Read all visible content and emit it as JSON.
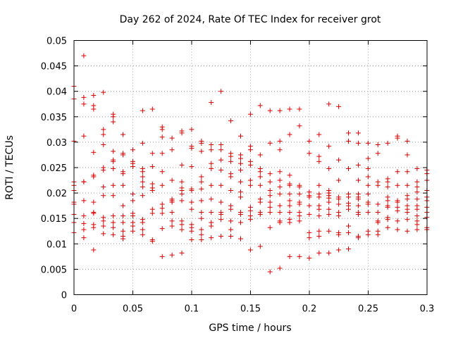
{
  "chart_data": {
    "type": "scatter",
    "title": "Day 262 of 2024, Rate Of TEC Index for receiver grot",
    "xlabel": "GPS time / hours",
    "ylabel": "ROTI / TECUs",
    "xlim": [
      0,
      0.3
    ],
    "ylim": [
      0,
      0.05
    ],
    "xticks": [
      "0",
      "0.05",
      "0.1",
      "0.15",
      "0.2",
      "0.25",
      "0.3"
    ],
    "yticks": [
      "0",
      "0.005",
      "0.01",
      "0.015",
      "0.02",
      "0.025",
      "0.03",
      "0.035",
      "0.04",
      "0.045",
      "0.05"
    ],
    "grid": true,
    "marker": "plus",
    "color": "#dd0000",
    "x_start": 0,
    "x_step": 0.00833,
    "columns": [
      [
        0.041,
        0.0385,
        0.0302,
        0.0222,
        0.0215,
        0.0205,
        0.0182,
        0.0178,
        0.0158,
        0.0142,
        0.0122
      ],
      [
        0.047,
        0.0388,
        0.0375,
        0.0312,
        0.0222,
        0.0222,
        0.0185,
        0.0155,
        0.014,
        0.0128,
        0.0112
      ],
      [
        0.0392,
        0.0372,
        0.0365,
        0.028,
        0.0235,
        0.0232,
        0.0182,
        0.0162,
        0.016,
        0.0138,
        0.0132,
        0.0088
      ],
      [
        0.0398,
        0.0325,
        0.0315,
        0.0295,
        0.025,
        0.0245,
        0.0212,
        0.0195,
        0.0152,
        0.0145,
        0.0135,
        0.012
      ],
      [
        0.0355,
        0.035,
        0.034,
        0.0282,
        0.0265,
        0.0262,
        0.0248,
        0.0215,
        0.0195,
        0.0155,
        0.0142,
        0.0132,
        0.0118
      ],
      [
        0.0315,
        0.0278,
        0.0275,
        0.0242,
        0.0238,
        0.0215,
        0.0175,
        0.0155,
        0.0142,
        0.0125,
        0.0115,
        0.011
      ],
      [
        0.0285,
        0.0262,
        0.0258,
        0.0252,
        0.0198,
        0.0185,
        0.016,
        0.0155,
        0.0142,
        0.0135,
        0.0125
      ],
      [
        0.0362,
        0.0298,
        0.0248,
        0.0242,
        0.0232,
        0.0222,
        0.0212,
        0.0195,
        0.0148,
        0.0142,
        0.0128,
        0.0118
      ],
      [
        0.0365,
        0.0278,
        0.0252,
        0.0218,
        0.021,
        0.0205,
        0.0168,
        0.016,
        0.0108,
        0.0105
      ],
      [
        0.033,
        0.0325,
        0.031,
        0.0278,
        0.0242,
        0.0215,
        0.0178,
        0.017,
        0.016,
        0.013,
        0.0075
      ],
      [
        0.0308,
        0.0285,
        0.0225,
        0.0188,
        0.0185,
        0.0182,
        0.0162,
        0.0145,
        0.0135,
        0.0078
      ],
      [
        0.0322,
        0.0318,
        0.0255,
        0.0222,
        0.021,
        0.0205,
        0.0198,
        0.0185,
        0.0145,
        0.0138,
        0.0128,
        0.0082
      ],
      [
        0.0325,
        0.0292,
        0.0288,
        0.0252,
        0.0208,
        0.0205,
        0.0182,
        0.0168,
        0.0138,
        0.0132,
        0.0125,
        0.0108
      ],
      [
        0.0302,
        0.0298,
        0.0282,
        0.0232,
        0.0222,
        0.0208,
        0.0185,
        0.0162,
        0.015,
        0.0128,
        0.0118,
        0.0108
      ],
      [
        0.0378,
        0.0295,
        0.0285,
        0.0258,
        0.0248,
        0.0215,
        0.0188,
        0.0162,
        0.0142,
        0.0135,
        0.0112
      ],
      [
        0.04,
        0.0295,
        0.0285,
        0.0265,
        0.0245,
        0.0215,
        0.0182,
        0.0162,
        0.0158,
        0.0148,
        0.0115
      ],
      [
        0.0342,
        0.0278,
        0.0272,
        0.0262,
        0.0238,
        0.0232,
        0.0205,
        0.0175,
        0.0168,
        0.0145,
        0.0128,
        0.0115
      ],
      [
        0.0312,
        0.0275,
        0.0268,
        0.0258,
        0.0245,
        0.0222,
        0.0202,
        0.0192,
        0.0162,
        0.0158,
        0.0142,
        0.011
      ],
      [
        0.0355,
        0.0292,
        0.0285,
        0.0262,
        0.0255,
        0.0225,
        0.0215,
        0.0172,
        0.0165,
        0.0155,
        0.0148,
        0.0088
      ],
      [
        0.0372,
        0.0275,
        0.0248,
        0.0242,
        0.0232,
        0.0215,
        0.0188,
        0.0182,
        0.0162,
        0.0158,
        0.0095
      ],
      [
        0.0362,
        0.0298,
        0.0238,
        0.0222,
        0.0205,
        0.0195,
        0.0182,
        0.0172,
        0.0162,
        0.0132,
        0.0045
      ],
      [
        0.0362,
        0.0302,
        0.0285,
        0.0242,
        0.0225,
        0.0212,
        0.0198,
        0.0175,
        0.0162,
        0.0145,
        0.0142,
        0.0052
      ],
      [
        0.0365,
        0.0315,
        0.0235,
        0.0218,
        0.0215,
        0.0198,
        0.0185,
        0.0175,
        0.0162,
        0.0148,
        0.0142,
        0.0075
      ],
      [
        0.0365,
        0.0332,
        0.0215,
        0.0212,
        0.0198,
        0.0182,
        0.0178,
        0.0162,
        0.0155,
        0.0145,
        0.0075
      ],
      [
        0.0302,
        0.0278,
        0.0202,
        0.0195,
        0.0192,
        0.0175,
        0.0158,
        0.0122,
        0.0112,
        0.0072
      ],
      [
        0.0315,
        0.0272,
        0.0262,
        0.0215,
        0.0198,
        0.0192,
        0.0175,
        0.0168,
        0.0155,
        0.0125,
        0.0115,
        0.0082
      ],
      [
        0.0375,
        0.0292,
        0.0248,
        0.0205,
        0.02,
        0.0195,
        0.019,
        0.0182,
        0.0168,
        0.0158,
        0.0125,
        0.0082
      ],
      [
        0.037,
        0.0265,
        0.0225,
        0.0192,
        0.0188,
        0.0178,
        0.0162,
        0.0155,
        0.0122,
        0.0118,
        0.0088
      ],
      [
        0.0318,
        0.0302,
        0.0248,
        0.0198,
        0.0192,
        0.018,
        0.0175,
        0.0168,
        0.0135,
        0.0122,
        0.009
      ],
      [
        0.0318,
        0.0298,
        0.0255,
        0.0225,
        0.0198,
        0.0192,
        0.0188,
        0.0175,
        0.0162,
        0.0158,
        0.0115,
        0.0112
      ],
      [
        0.0298,
        0.0268,
        0.0248,
        0.0232,
        0.0215,
        0.0198,
        0.0182,
        0.0178,
        0.0162,
        0.0125,
        0.0118
      ],
      [
        0.0295,
        0.0278,
        0.0222,
        0.0215,
        0.0178,
        0.0162,
        0.0145,
        0.0142,
        0.0125,
        0.0118
      ],
      [
        0.0298,
        0.0228,
        0.0222,
        0.0212,
        0.0192,
        0.0185,
        0.0175,
        0.0172,
        0.0152,
        0.0148,
        0.0132
      ],
      [
        0.0312,
        0.0308,
        0.0242,
        0.0215,
        0.0185,
        0.0182,
        0.0172,
        0.0165,
        0.0145,
        0.0128
      ],
      [
        0.0302,
        0.0275,
        0.0242,
        0.0215,
        0.0195,
        0.0188,
        0.0175,
        0.0168,
        0.0162,
        0.0148,
        0.0125
      ],
      [
        0.0248,
        0.0222,
        0.0212,
        0.0202,
        0.0188,
        0.0175,
        0.0168,
        0.0155,
        0.0145,
        0.0138,
        0.0128
      ],
      [
        0.0245,
        0.0238,
        0.0225,
        0.0205,
        0.0192,
        0.0185,
        0.0172,
        0.0162,
        0.0152,
        0.0132,
        0.0128
      ]
    ]
  }
}
